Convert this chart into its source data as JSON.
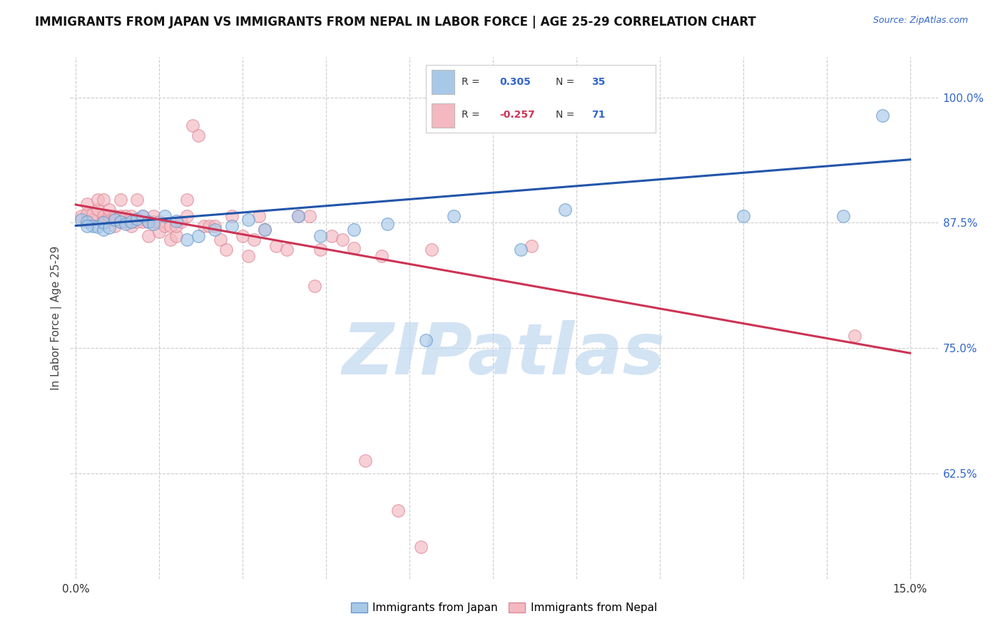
{
  "title": "IMMIGRANTS FROM JAPAN VS IMMIGRANTS FROM NEPAL IN LABOR FORCE | AGE 25-29 CORRELATION CHART",
  "source_text": "Source: ZipAtlas.com",
  "ylabel": "In Labor Force | Age 25-29",
  "y_tick_labels": [
    "62.5%",
    "75.0%",
    "87.5%",
    "100.0%"
  ],
  "y_tick_values": [
    0.625,
    0.75,
    0.875,
    1.0
  ],
  "legend_label_japan": "Immigrants from Japan",
  "legend_label_nepal": "Immigrants from Nepal",
  "R_japan": "0.305",
  "N_japan": "35",
  "R_nepal": "-0.257",
  "N_nepal": "71",
  "japan_color": "#a8c8e8",
  "nepal_color": "#f4b8c0",
  "japan_edge_color": "#6699cc",
  "nepal_edge_color": "#dd8899",
  "japan_line_color": "#2255aa",
  "nepal_line_color": "#cc3355",
  "background_color": "#ffffff",
  "watermark_text": "ZIPatlas",
  "watermark_color": "#c0d8f0",
  "japan_scatter_x": [
    0.001,
    0.002,
    0.003,
    0.004,
    0.005,
    0.005,
    0.006,
    0.007,
    0.008,
    0.009,
    0.01,
    0.011,
    0.012,
    0.013,
    0.014,
    0.016,
    0.018,
    0.02,
    0.022,
    0.025,
    0.028,
    0.031,
    0.034,
    0.04,
    0.044,
    0.05,
    0.056,
    0.063,
    0.068,
    0.08,
    0.088,
    0.12,
    0.138,
    0.145,
    0.002
  ],
  "japan_scatter_y": [
    0.878,
    0.876,
    0.872,
    0.871,
    0.868,
    0.875,
    0.87,
    0.878,
    0.876,
    0.874,
    0.876,
    0.879,
    0.882,
    0.876,
    0.874,
    0.882,
    0.877,
    0.858,
    0.862,
    0.868,
    0.872,
    0.878,
    0.868,
    0.882,
    0.862,
    0.868,
    0.874,
    0.758,
    0.882,
    0.848,
    0.888,
    0.882,
    0.882,
    0.982,
    0.872
  ],
  "nepal_scatter_x": [
    0.001,
    0.002,
    0.002,
    0.003,
    0.003,
    0.004,
    0.004,
    0.005,
    0.005,
    0.005,
    0.006,
    0.006,
    0.006,
    0.007,
    0.007,
    0.007,
    0.008,
    0.008,
    0.008,
    0.009,
    0.009,
    0.01,
    0.01,
    0.01,
    0.011,
    0.011,
    0.012,
    0.012,
    0.013,
    0.013,
    0.014,
    0.014,
    0.015,
    0.015,
    0.016,
    0.017,
    0.017,
    0.018,
    0.018,
    0.019,
    0.02,
    0.02,
    0.021,
    0.022,
    0.023,
    0.024,
    0.025,
    0.026,
    0.027,
    0.028,
    0.03,
    0.031,
    0.032,
    0.033,
    0.034,
    0.036,
    0.038,
    0.04,
    0.042,
    0.043,
    0.044,
    0.046,
    0.048,
    0.05,
    0.052,
    0.055,
    0.058,
    0.062,
    0.064,
    0.082,
    0.14
  ],
  "nepal_scatter_y": [
    0.882,
    0.884,
    0.894,
    0.878,
    0.884,
    0.888,
    0.898,
    0.882,
    0.876,
    0.898,
    0.878,
    0.882,
    0.888,
    0.872,
    0.878,
    0.882,
    0.876,
    0.882,
    0.898,
    0.876,
    0.882,
    0.872,
    0.876,
    0.882,
    0.876,
    0.898,
    0.876,
    0.882,
    0.862,
    0.876,
    0.876,
    0.882,
    0.866,
    0.876,
    0.872,
    0.858,
    0.872,
    0.862,
    0.872,
    0.876,
    0.898,
    0.882,
    0.972,
    0.962,
    0.872,
    0.872,
    0.872,
    0.858,
    0.848,
    0.882,
    0.862,
    0.842,
    0.858,
    0.882,
    0.868,
    0.852,
    0.848,
    0.882,
    0.882,
    0.812,
    0.848,
    0.862,
    0.858,
    0.85,
    0.638,
    0.842,
    0.588,
    0.552,
    0.848,
    0.852,
    0.762
  ],
  "xlim": [
    -0.001,
    0.155
  ],
  "ylim": [
    0.52,
    1.04
  ],
  "japan_line_y0": 0.872,
  "japan_line_y1": 0.938,
  "nepal_line_y0": 0.893,
  "nepal_line_y1": 0.745,
  "x_ticks": [
    0.0,
    0.015,
    0.03,
    0.045,
    0.06,
    0.075,
    0.09,
    0.105,
    0.12,
    0.135,
    0.15
  ]
}
